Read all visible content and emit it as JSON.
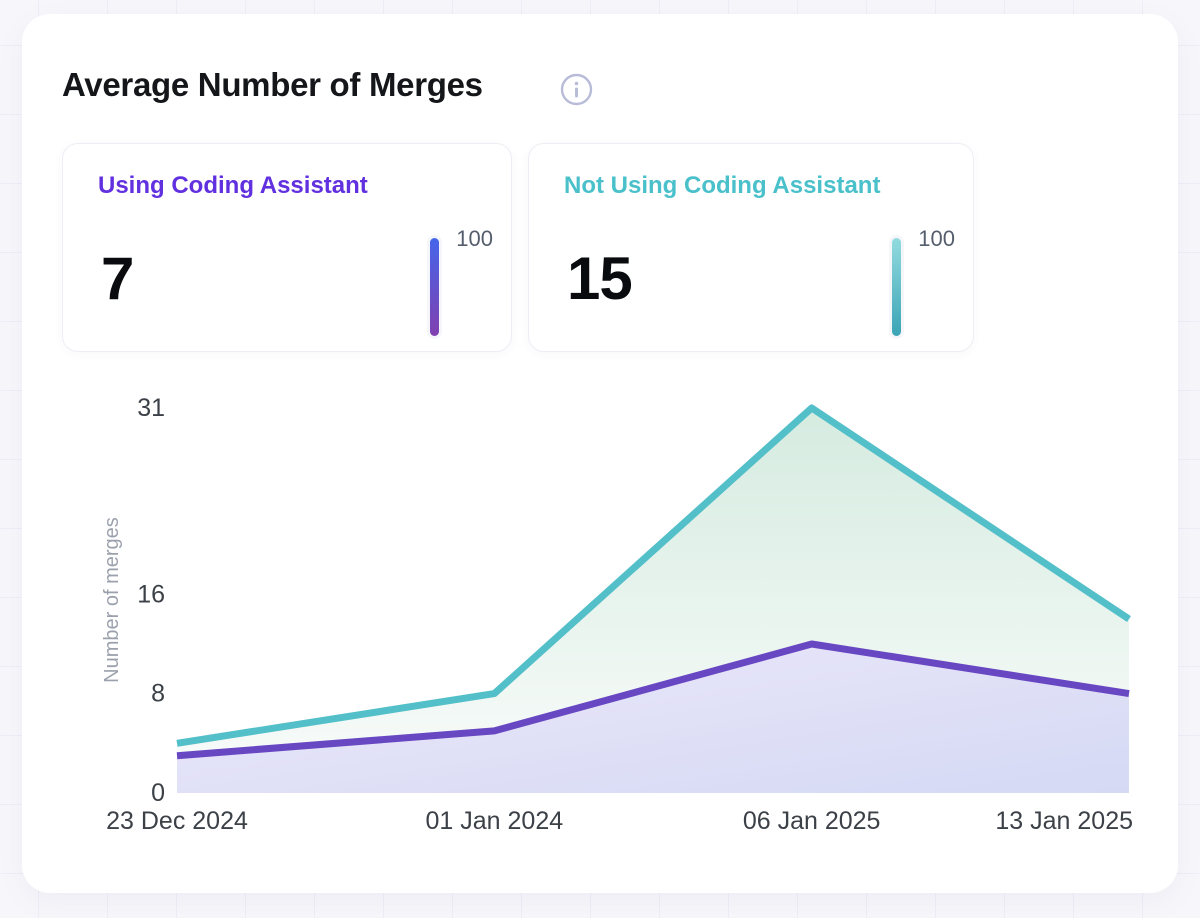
{
  "header": {
    "title": "Average Number of Merges"
  },
  "stat_cards": [
    {
      "label": "Using Coding Assistant",
      "value": "7",
      "scale_max": "100",
      "accent": "#6130DF",
      "bar_gradient_top": "#4565EA",
      "bar_gradient_bottom": "#8040B0"
    },
    {
      "label": "Not Using Coding Assistant",
      "value": "15",
      "scale_max": "100",
      "accent": "#49C0CA",
      "bar_gradient_top": "#92DBDF",
      "bar_gradient_bottom": "#3BA4B6"
    }
  ],
  "chart_data": {
    "type": "area",
    "title": "",
    "xlabel": "",
    "ylabel": "Number of merges",
    "x": [
      "23 Dec 2024",
      "01 Jan 2024",
      "06 Jan 2025",
      "13 Jan 2025"
    ],
    "series": [
      {
        "name": "Using Coding Assistant",
        "values": [
          3,
          5,
          12,
          8
        ],
        "line_color": "#6847C2",
        "fill_from": "#ECE8FA",
        "fill_to": "#D5D9F4"
      },
      {
        "name": "Not Using Coding Assistant",
        "values": [
          4,
          8,
          31,
          14
        ],
        "line_color": "#53BFC9",
        "fill_from": "#D5EBE0",
        "fill_to": "#FAFCFB"
      }
    ],
    "yticks": [
      0,
      8,
      16,
      31
    ],
    "ylim": [
      0,
      31
    ],
    "grid": false,
    "legend_position": "none",
    "axis_text_color": "#3C4148",
    "axis_title_color": "#9BA1AC"
  }
}
